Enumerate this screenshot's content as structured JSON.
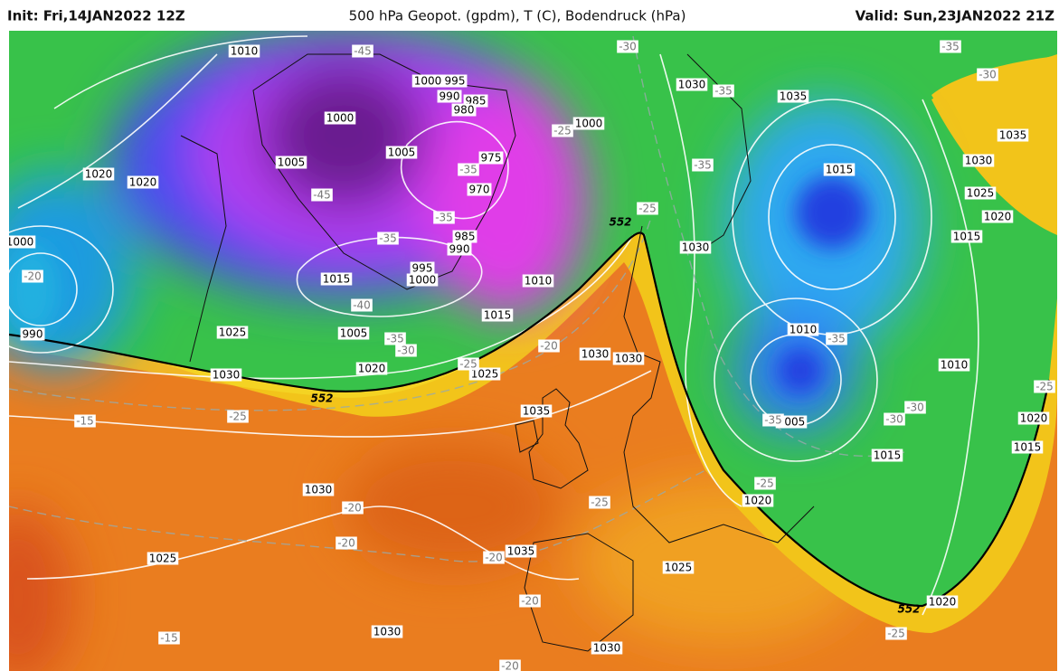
{
  "header": {
    "init": "Init: Fri,14JAN2022 12Z",
    "title": "500 hPa Geopot. (gpdm), T (C), Bodendruck (hPa)",
    "valid": "Valid: Sun,23JAN2022 21Z"
  },
  "isobar_labels": [
    "1010",
    "1000",
    "995",
    "990",
    "985",
    "980",
    "1000",
    "1000",
    "1030",
    "1035",
    "1035",
    "1030",
    "1025",
    "1020",
    "1015",
    "1020",
    "1020",
    "1005",
    "1005",
    "975",
    "970",
    "985",
    "990",
    "995",
    "1000",
    "1015",
    "1010",
    "1015",
    "1030",
    "1015",
    "1025",
    "990",
    "1005",
    "1020",
    "1030",
    "1025",
    "1030",
    "1030",
    "1010",
    "1005",
    "1035",
    "1010",
    "1020",
    "1015",
    "1015",
    "1020",
    "1030",
    "1035",
    "1025",
    "1025",
    "1030",
    "1030",
    "1020",
    "1000"
  ],
  "temperature_labels": [
    "-45",
    "-30",
    "-35",
    "-25",
    "-35",
    "-45",
    "-35",
    "-35",
    "-40",
    "-35",
    "-30",
    "-20",
    "-20",
    "-25",
    "-25",
    "-35",
    "-30",
    "-35",
    "-35",
    "-35",
    "-30",
    "-30",
    "-25",
    "-25",
    "-15",
    "-20",
    "-20",
    "-20",
    "-25",
    "-25",
    "-20",
    "-15",
    "-20",
    "-25"
  ],
  "geopotential_labels": [
    "552",
    "552",
    "552"
  ]
}
